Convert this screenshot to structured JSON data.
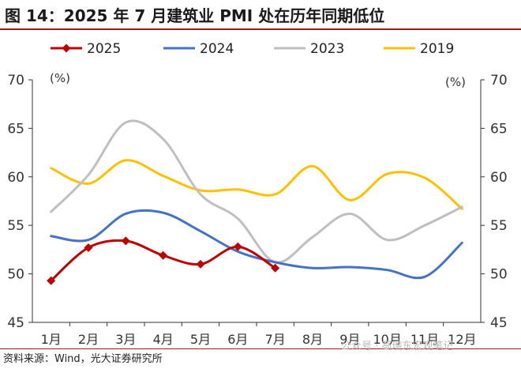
{
  "header": {
    "title": "图 14：2025 年 7 月建筑业 PMI 处在历年同期低位"
  },
  "footer": {
    "source": "资料来源：Wind，光大证券研究所",
    "watermark": "公众号 · 高瑞东宏观笔记"
  },
  "chart_data": {
    "type": "line",
    "title": "",
    "categories": [
      "1月",
      "2月",
      "3月",
      "4月",
      "5月",
      "6月",
      "7月",
      "8月",
      "9月",
      "10月",
      "11月",
      "12月"
    ],
    "ylim": [
      45,
      70
    ],
    "yticks": [
      45,
      50,
      55,
      60,
      65,
      70
    ],
    "ylabel_left": "(%)",
    "ylabel_right": "(%)",
    "grid": false,
    "legend_position": "top",
    "series": [
      {
        "name": "2025",
        "color": "#c00000",
        "marker": "diamond",
        "smooth": true,
        "values": [
          49.3,
          52.7,
          53.4,
          51.9,
          51.0,
          52.8,
          50.6,
          null,
          null,
          null,
          null,
          null
        ]
      },
      {
        "name": "2024",
        "color": "#4472c4",
        "marker": "none",
        "smooth": true,
        "values": [
          53.9,
          53.5,
          56.2,
          56.3,
          54.4,
          52.3,
          51.2,
          50.6,
          50.7,
          50.4,
          49.7,
          53.2
        ]
      },
      {
        "name": "2023",
        "color": "#bfbfbf",
        "marker": "none",
        "smooth": true,
        "values": [
          56.4,
          60.2,
          65.6,
          63.9,
          58.2,
          55.7,
          51.2,
          53.8,
          56.2,
          53.5,
          55.0,
          56.9
        ]
      },
      {
        "name": "2019",
        "color": "#ffc000",
        "marker": "none",
        "smooth": true,
        "values": [
          60.9,
          59.3,
          61.7,
          60.1,
          58.6,
          58.7,
          58.2,
          61.1,
          57.6,
          60.3,
          59.9,
          56.7
        ]
      }
    ]
  }
}
